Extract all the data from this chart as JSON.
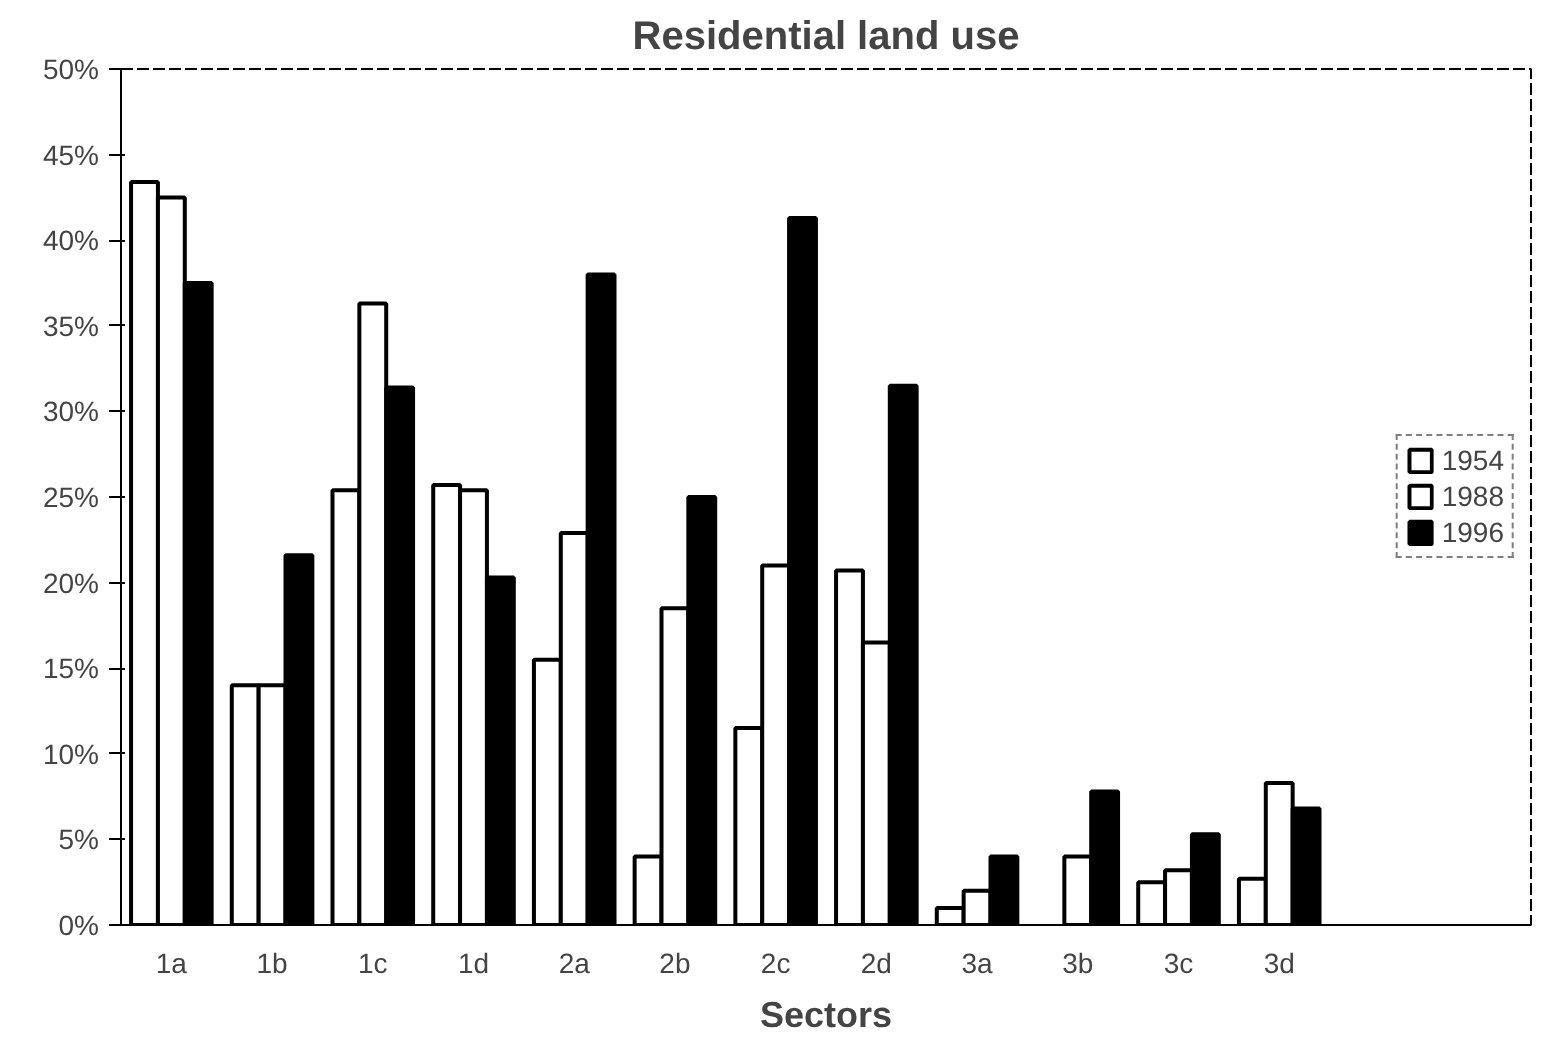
{
  "chart_data": {
    "type": "bar",
    "title": "Residential land use",
    "xlabel": "Sectors",
    "categories": [
      "1a",
      "1b",
      "1c",
      "1d",
      "2a",
      "2b",
      "2c",
      "2d",
      "3a",
      "3b",
      "3c",
      "3d"
    ],
    "series": [
      {
        "name": "1954",
        "color": "#ffffff",
        "values": [
          43.4,
          14,
          25.4,
          25.7,
          15.5,
          4,
          11.5,
          20.7,
          1,
          null,
          2.5,
          2.7
        ]
      },
      {
        "name": "1988",
        "color": "#ffffff",
        "values": [
          42.5,
          14,
          36.3,
          25.4,
          22.9,
          18.5,
          21,
          16.5,
          2,
          4,
          3.2,
          8.3
        ]
      },
      {
        "name": "1996",
        "color": "#000000",
        "values": [
          37.5,
          21.6,
          31.4,
          20.3,
          38,
          25,
          41.3,
          31.5,
          4,
          7.8,
          5.3,
          6.8
        ]
      }
    ],
    "ylim": [
      0,
      50
    ],
    "yticks": [
      {
        "value": 0,
        "label": "0%"
      },
      {
        "value": 5,
        "label": "5%"
      },
      {
        "value": 10,
        "label": "10%"
      },
      {
        "value": 15,
        "label": "15%"
      },
      {
        "value": 20,
        "label": "20%"
      },
      {
        "value": 25,
        "label": "25%"
      },
      {
        "value": 30,
        "label": "30%"
      },
      {
        "value": 35,
        "label": "35%"
      },
      {
        "value": 40,
        "label": "40%"
      },
      {
        "value": 45,
        "label": "45%"
      },
      {
        "value": 50,
        "label": "50%"
      }
    ],
    "grid": false,
    "legend": "right"
  }
}
